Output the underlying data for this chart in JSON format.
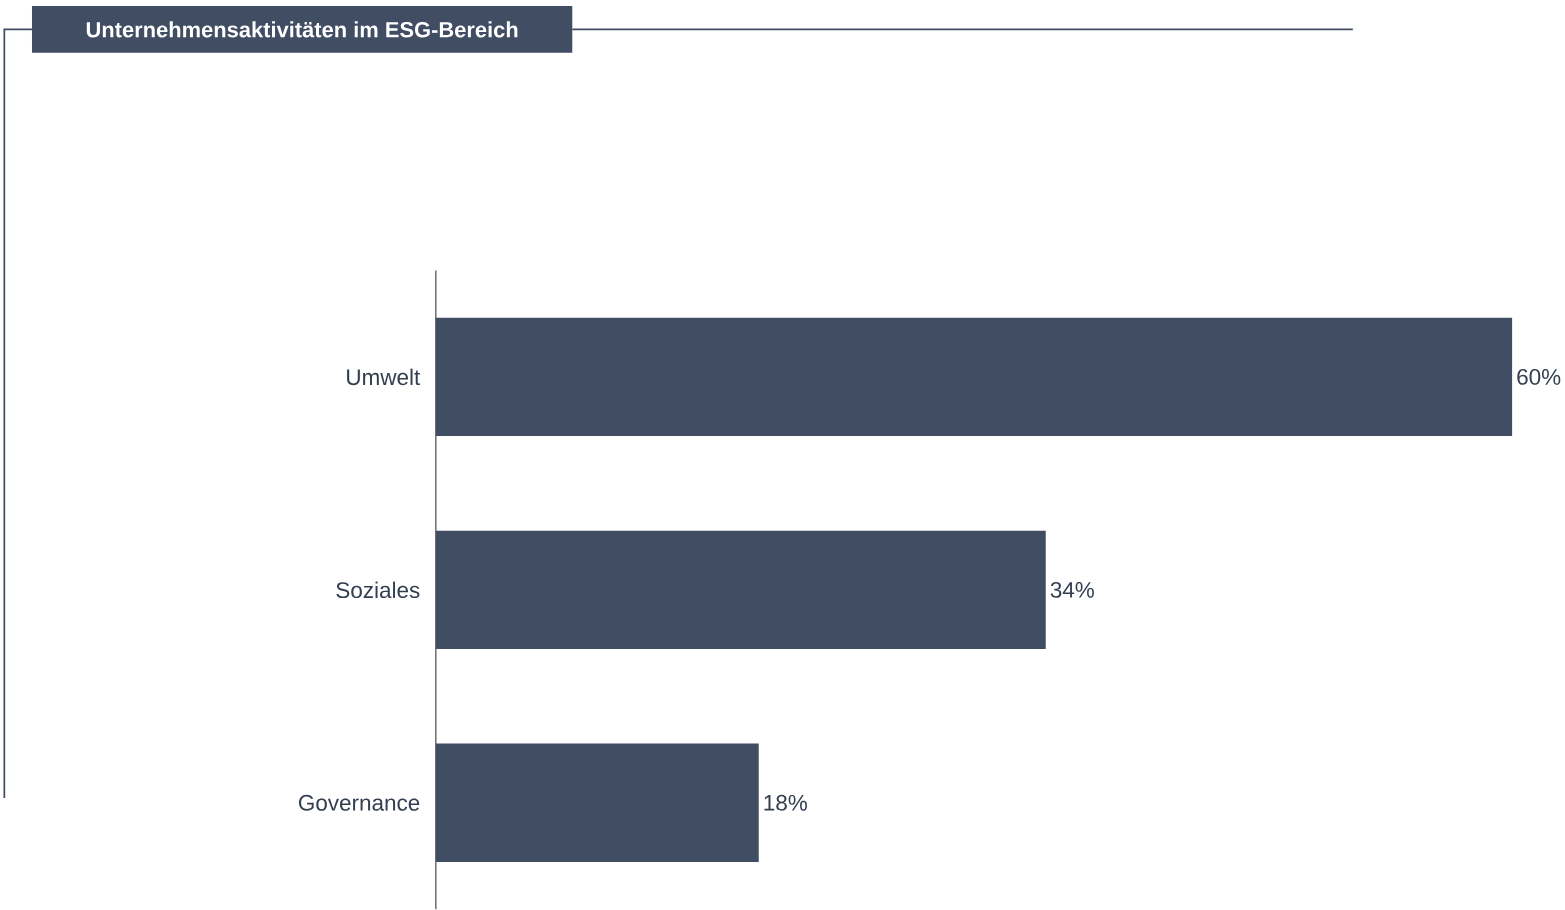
{
  "chart_data": {
    "type": "bar",
    "orientation": "horizontal",
    "title": "Unternehmensaktivitäten im ESG-Bereich",
    "categories": [
      "Umwelt",
      "Soziales",
      "Governance"
    ],
    "values": [
      60,
      34,
      18
    ],
    "value_labels": [
      "60%",
      "34%",
      "18%"
    ],
    "color": "#414d63"
  }
}
